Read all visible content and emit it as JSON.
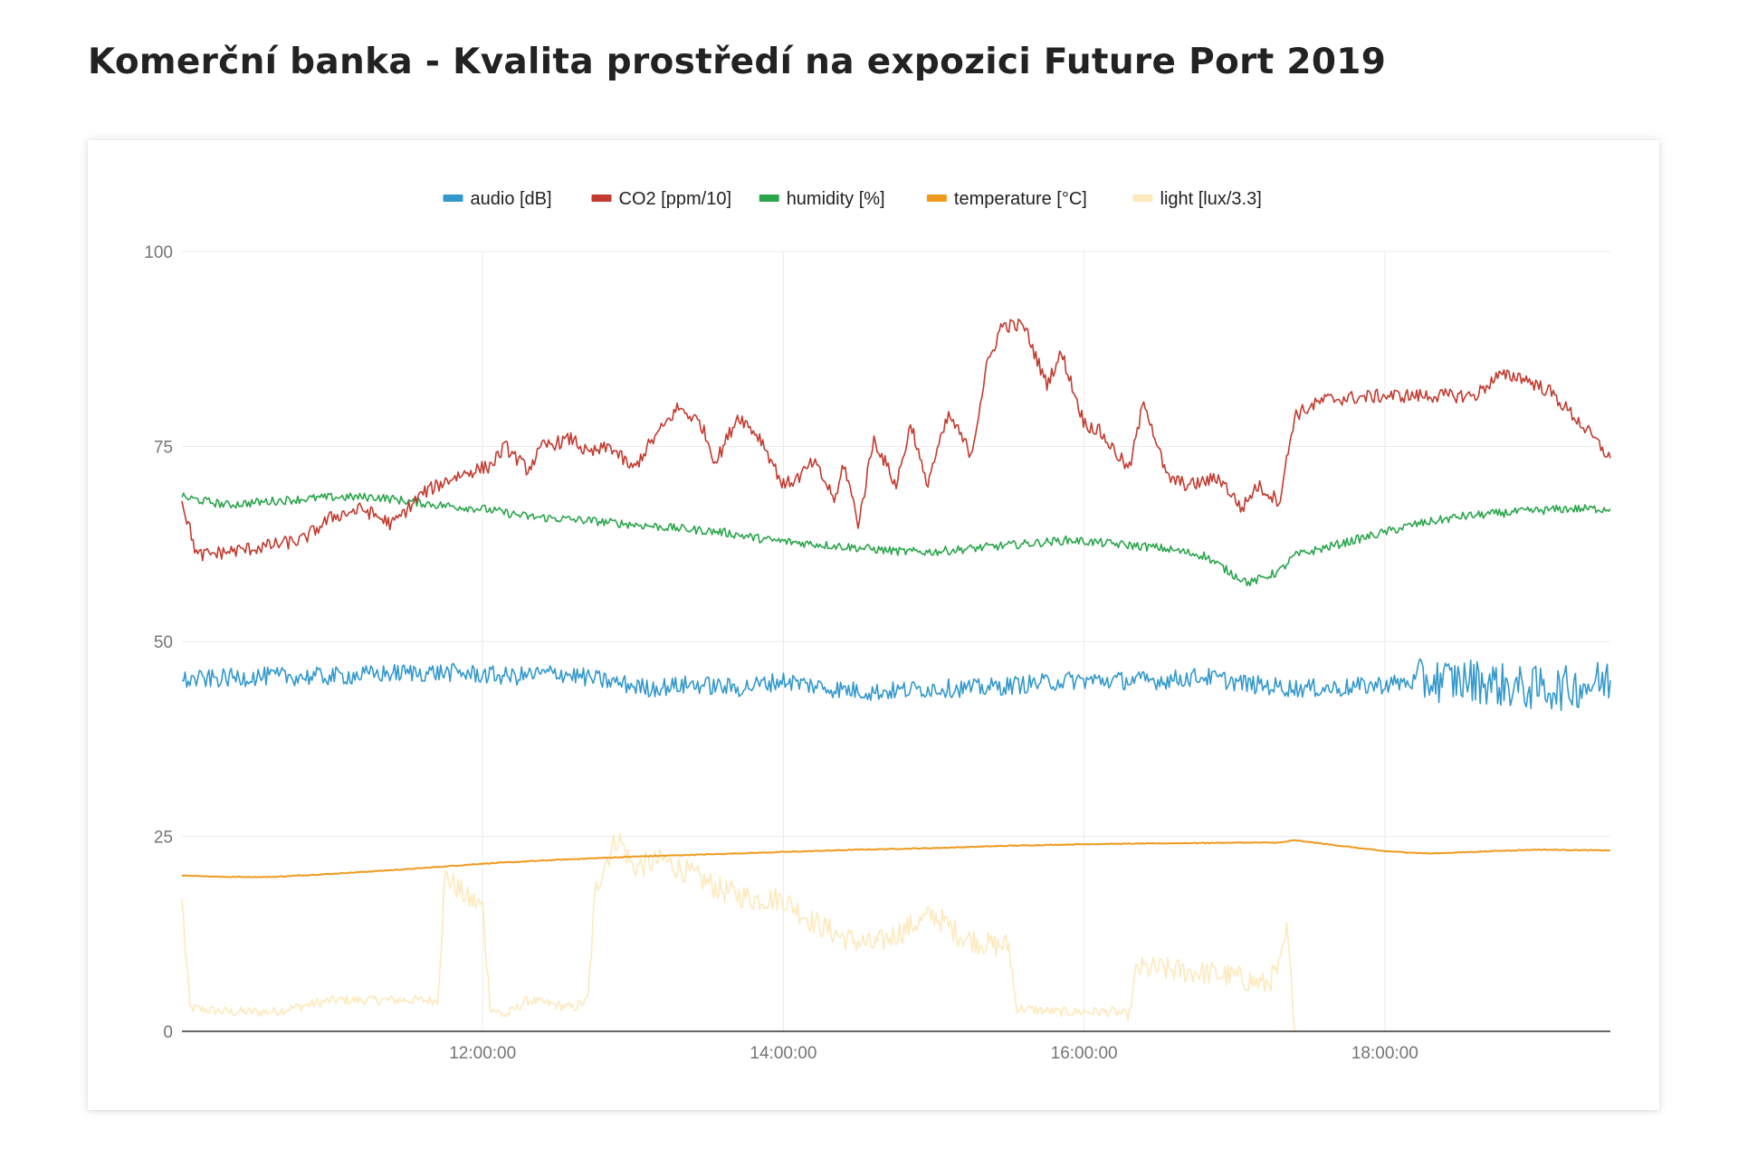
{
  "page": {
    "title": "Komerční banka - Kvalita prostředí na expozici Future Port 2019"
  },
  "chart_data": {
    "type": "line",
    "title": "",
    "xlabel": "",
    "ylabel": "",
    "x_range_hours": [
      10.0,
      19.5
    ],
    "x_tick_values": [
      12,
      14,
      16,
      18
    ],
    "x_tick_labels": [
      "12:00:00",
      "14:00:00",
      "16:00:00",
      "18:00:00"
    ],
    "ylim": [
      0,
      100
    ],
    "y_tick_values": [
      0,
      25,
      50,
      75,
      100
    ],
    "y_tick_labels": [
      "0",
      "25",
      "50",
      "75",
      "100"
    ],
    "grid": true,
    "legend_position": "top",
    "series": [
      {
        "name": "audio [dB]",
        "color": "#3399cc",
        "x": [
          10.0,
          10.5,
          11.0,
          11.5,
          11.8,
          12.2,
          12.5,
          12.8,
          13.1,
          13.4,
          13.7,
          14.0,
          14.3,
          14.6,
          15.0,
          15.3,
          15.6,
          15.9,
          16.2,
          16.5,
          16.8,
          17.1,
          17.4,
          17.7,
          18.0,
          18.3,
          18.6,
          18.9,
          19.2,
          19.5
        ],
        "y": [
          45,
          45.5,
          45.5,
          46,
          46,
          45.5,
          46,
          45,
          44,
          44.5,
          44,
          45,
          44,
          43.5,
          44,
          44,
          44.5,
          45,
          45,
          45,
          45.5,
          44.5,
          44,
          44,
          44.5,
          45,
          45,
          44,
          44,
          45
        ]
      },
      {
        "name": "CO2 [ppm/10]",
        "color": "#c23b2f",
        "x": [
          10.0,
          10.1,
          10.5,
          10.8,
          11.0,
          11.2,
          11.4,
          11.6,
          11.8,
          11.95,
          12.05,
          12.15,
          12.3,
          12.4,
          12.6,
          12.7,
          12.85,
          13.0,
          13.1,
          13.3,
          13.45,
          13.55,
          13.7,
          13.85,
          14.0,
          14.1,
          14.2,
          14.35,
          14.4,
          14.5,
          14.6,
          14.75,
          14.85,
          14.95,
          15.1,
          15.25,
          15.35,
          15.45,
          15.6,
          15.75,
          15.85,
          16.0,
          16.1,
          16.3,
          16.4,
          16.55,
          16.7,
          16.9,
          17.05,
          17.15,
          17.3,
          17.4,
          17.6,
          18.0,
          18.3,
          18.6,
          18.75,
          18.9,
          19.1,
          19.3,
          19.5
        ],
        "y": [
          68,
          61,
          62,
          63,
          66,
          67,
          65,
          69,
          71,
          72,
          72.5,
          75,
          72,
          75,
          76,
          74,
          75,
          72,
          75,
          80,
          78,
          73,
          79,
          76,
          70,
          71,
          73,
          68,
          73,
          65,
          76,
          70,
          78,
          70,
          79,
          74,
          85,
          90.5,
          90.5,
          83,
          87,
          78,
          77,
          72,
          81,
          71,
          70,
          71,
          67,
          70,
          68,
          79,
          81,
          81.5,
          81.5,
          81.5,
          84,
          84,
          82,
          78,
          73.5
        ]
      },
      {
        "name": "humidity [%]",
        "color": "#2aa54b",
        "x": [
          10.0,
          10.3,
          10.6,
          11.0,
          11.3,
          11.7,
          12.0,
          12.3,
          12.7,
          13.0,
          13.3,
          13.6,
          13.9,
          14.2,
          14.5,
          14.8,
          15.0,
          15.3,
          15.6,
          15.9,
          16.2,
          16.5,
          16.8,
          17.0,
          17.1,
          17.3,
          17.4,
          17.6,
          17.9,
          18.2,
          18.5,
          18.8,
          19.2,
          19.5
        ],
        "y": [
          68.5,
          67.5,
          68,
          68.5,
          68.5,
          67.5,
          67,
          66,
          65.5,
          65,
          64.5,
          64,
          63,
          62.5,
          62,
          61.5,
          61.5,
          62,
          62.5,
          63,
          62.5,
          62,
          61,
          58.5,
          57.5,
          59,
          61,
          62,
          63.5,
          65,
          66,
          66.5,
          67,
          67
        ]
      },
      {
        "name": "temperature [°C]",
        "color": "#ee9a1e",
        "x": [
          10.0,
          10.3,
          10.6,
          11.0,
          11.5,
          12.0,
          12.5,
          13.0,
          13.5,
          14.0,
          14.5,
          15.0,
          15.5,
          16.0,
          16.5,
          17.0,
          17.3,
          17.4,
          17.7,
          18.0,
          18.3,
          18.7,
          19.0,
          19.5
        ],
        "y": [
          20,
          19.8,
          19.8,
          20.2,
          20.8,
          21.5,
          22,
          22.4,
          22.7,
          23,
          23.3,
          23.5,
          23.8,
          24,
          24.1,
          24.2,
          24.2,
          24.5,
          23.8,
          23.1,
          22.8,
          23.1,
          23.3,
          23.2
        ]
      },
      {
        "name": "light [lux/3.3]",
        "color": "#fde9bd",
        "x": [
          10.0,
          10.05,
          10.3,
          10.6,
          11.0,
          11.5,
          11.7,
          11.75,
          11.8,
          11.9,
          12.0,
          12.05,
          12.15,
          12.3,
          12.6,
          12.7,
          12.75,
          12.8,
          12.9,
          13.0,
          13.2,
          13.4,
          13.6,
          13.8,
          14.0,
          14.2,
          14.4,
          14.6,
          14.8,
          15.0,
          15.2,
          15.4,
          15.5,
          15.55,
          15.8,
          16.0,
          16.2,
          16.3,
          16.35,
          16.5,
          16.8,
          17.0,
          17.2,
          17.3,
          17.35,
          17.4
        ],
        "y": [
          17,
          3,
          2.5,
          2.5,
          4,
          4,
          4,
          20,
          19,
          17,
          16,
          3,
          2,
          4,
          3,
          4,
          18,
          21,
          25,
          21,
          22,
          20,
          18,
          17,
          17,
          14,
          12,
          11,
          13,
          15,
          12,
          11,
          11,
          3,
          2.5,
          2.5,
          2.5,
          2,
          8,
          8,
          7.5,
          7,
          6,
          8,
          13,
          0
        ]
      }
    ]
  }
}
